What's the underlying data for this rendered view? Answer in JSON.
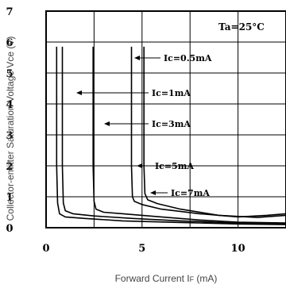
{
  "chart_data": {
    "type": "line",
    "xlabel_main": "Forward Current I",
    "xlabel_sub": "F",
    "xlabel_unit": " (mA)",
    "ylabel": "Collector-emitter Saturation Voltage Vce (V)",
    "xlim": [
      0,
      12.5
    ],
    "ylim": [
      0,
      7
    ],
    "x_ticks": [
      "0",
      "5",
      "10"
    ],
    "y_ticks": [
      "0",
      "1",
      "2",
      "3",
      "4",
      "5",
      "6",
      "7"
    ],
    "grid": true,
    "condition": "Ta=25°C",
    "annotations": [
      "Ic=0.5mA",
      "Ic=1mA",
      "Ic=3mA",
      "Ic=5mA",
      "Ic=7mA"
    ],
    "series": [
      {
        "name": "Ic=0.5mA",
        "x": [
          0.55,
          0.55,
          0.6,
          0.7,
          1.0,
          2.0,
          4.0,
          7.0,
          10.0,
          12.5
        ],
        "y": [
          5.85,
          2.0,
          0.8,
          0.45,
          0.35,
          0.3,
          0.22,
          0.17,
          0.12,
          0.1
        ]
      },
      {
        "name": "Ic=1mA",
        "x": [
          0.85,
          0.85,
          0.9,
          1.0,
          1.4,
          2.5,
          4.5,
          7.0,
          10.0,
          12.5
        ],
        "y": [
          5.85,
          2.0,
          0.8,
          0.55,
          0.45,
          0.38,
          0.3,
          0.22,
          0.15,
          0.12
        ]
      },
      {
        "name": "Ic=3mA",
        "x": [
          2.45,
          2.45,
          2.5,
          2.6,
          3.0,
          4.0,
          6.0,
          8.0,
          10.0,
          12.5
        ],
        "y": [
          5.85,
          2.0,
          0.85,
          0.6,
          0.5,
          0.45,
          0.35,
          0.25,
          0.18,
          0.15
        ]
      },
      {
        "name": "Ic=5mA",
        "x": [
          4.45,
          4.45,
          4.5,
          4.6,
          5.0,
          6.0,
          8.0,
          10.0,
          11.5,
          12.5
        ],
        "y": [
          5.85,
          2.0,
          1.0,
          0.85,
          0.75,
          0.6,
          0.45,
          0.35,
          0.4,
          0.45
        ]
      },
      {
        "name": "Ic=7mA",
        "x": [
          5.1,
          5.1,
          5.15,
          5.3,
          5.8,
          7.0,
          9.0,
          11.0,
          12.5
        ],
        "y": [
          5.85,
          2.0,
          1.1,
          0.9,
          0.78,
          0.6,
          0.4,
          0.33,
          0.4
        ]
      }
    ]
  }
}
